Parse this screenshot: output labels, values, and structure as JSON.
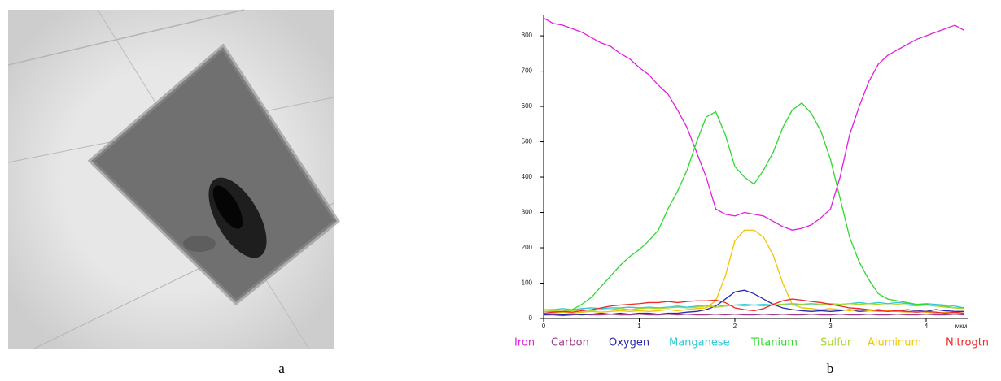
{
  "captions": [
    "a",
    "b"
  ],
  "chart_data": {
    "type": "line",
    "x_unit": "мкм",
    "x": [
      0,
      0.1,
      0.2,
      0.3,
      0.4,
      0.5,
      0.6,
      0.7,
      0.8,
      0.9,
      1.0,
      1.1,
      1.2,
      1.3,
      1.4,
      1.5,
      1.6,
      1.7,
      1.8,
      1.9,
      2.0,
      2.1,
      2.2,
      2.3,
      2.4,
      2.5,
      2.6,
      2.7,
      2.8,
      2.9,
      3.0,
      3.1,
      3.2,
      3.3,
      3.4,
      3.5,
      3.6,
      3.7,
      3.8,
      3.9,
      4.0,
      4.1,
      4.2,
      4.3,
      4.4
    ],
    "xlim": [
      0,
      4.4
    ],
    "xticks": [
      0,
      1,
      2,
      3,
      4
    ],
    "ylim": [
      0,
      860
    ],
    "yticks": [
      0,
      100,
      200,
      300,
      400,
      500,
      600,
      700,
      800
    ],
    "series": [
      {
        "name": "Iron",
        "color": "#e21ee2",
        "values": [
          850,
          835,
          830,
          820,
          810,
          795,
          780,
          770,
          750,
          735,
          710,
          690,
          660,
          635,
          590,
          540,
          470,
          400,
          310,
          295,
          290,
          300,
          295,
          290,
          275,
          260,
          250,
          255,
          265,
          285,
          310,
          400,
          520,
          600,
          670,
          720,
          745,
          760,
          775,
          790,
          800,
          810,
          820,
          830,
          815
        ]
      },
      {
        "name": "Carbon",
        "color": "#a0408a",
        "values": [
          10,
          10,
          8,
          10,
          12,
          10,
          10,
          12,
          10,
          10,
          12,
          10,
          10,
          12,
          10,
          12,
          10,
          10,
          12,
          10,
          12,
          10,
          10,
          12,
          10,
          12,
          10,
          10,
          12,
          10,
          10,
          12,
          10,
          10,
          12,
          10,
          10,
          12,
          10,
          10,
          12,
          10,
          10,
          12,
          10
        ]
      },
      {
        "name": "Oxygen",
        "color": "#2a2ab0",
        "values": [
          10,
          12,
          10,
          12,
          10,
          12,
          15,
          12,
          15,
          12,
          15,
          15,
          12,
          15,
          15,
          18,
          20,
          25,
          35,
          55,
          75,
          80,
          70,
          55,
          40,
          30,
          25,
          22,
          20,
          22,
          20,
          22,
          25,
          20,
          22,
          25,
          22,
          20,
          25,
          22,
          20,
          25,
          22,
          20,
          20
        ]
      },
      {
        "name": "Manganese",
        "color": "#30c8d8",
        "values": [
          25,
          25,
          28,
          25,
          28,
          30,
          28,
          30,
          30,
          32,
          30,
          32,
          30,
          32,
          35,
          32,
          35,
          35,
          38,
          35,
          38,
          40,
          38,
          40,
          38,
          40,
          42,
          40,
          42,
          40,
          42,
          40,
          42,
          45,
          42,
          45,
          42,
          45,
          42,
          40,
          42,
          40,
          38,
          35,
          30
        ]
      },
      {
        "name": "Titanium",
        "color": "#2fd82f",
        "values": [
          20,
          20,
          20,
          25,
          40,
          60,
          90,
          120,
          150,
          175,
          195,
          220,
          250,
          310,
          360,
          420,
          500,
          570,
          585,
          520,
          430,
          400,
          380,
          420,
          470,
          540,
          590,
          610,
          580,
          530,
          450,
          340,
          230,
          160,
          110,
          70,
          55,
          50,
          45,
          40,
          40,
          35,
          35,
          30,
          30
        ]
      },
      {
        "name": "Sulfur",
        "color": "#a8d830",
        "values": [
          20,
          22,
          20,
          22,
          25,
          22,
          25,
          25,
          28,
          25,
          28,
          30,
          28,
          30,
          32,
          30,
          32,
          35,
          32,
          35,
          38,
          35,
          38,
          35,
          38,
          40,
          38,
          40,
          38,
          40,
          42,
          40,
          42,
          40,
          42,
          40,
          38,
          40,
          38,
          35,
          38,
          35,
          32,
          30,
          28
        ]
      },
      {
        "name": "Aluminum",
        "color": "#f2c400",
        "values": [
          15,
          15,
          18,
          15,
          18,
          20,
          18,
          20,
          22,
          20,
          22,
          20,
          22,
          25,
          22,
          25,
          28,
          30,
          50,
          120,
          220,
          250,
          250,
          230,
          180,
          100,
          40,
          30,
          28,
          25,
          28,
          25,
          22,
          25,
          22,
          20,
          22,
          20,
          18,
          20,
          18,
          15,
          18,
          15,
          15
        ]
      },
      {
        "name": "Nitrogtn",
        "color": "#f02828",
        "values": [
          15,
          18,
          20,
          18,
          22,
          25,
          30,
          35,
          38,
          40,
          42,
          45,
          45,
          48,
          45,
          48,
          50,
          50,
          52,
          45,
          30,
          25,
          22,
          28,
          40,
          50,
          55,
          52,
          48,
          45,
          40,
          35,
          30,
          28,
          25,
          22,
          20,
          22,
          20,
          18,
          20,
          18,
          15,
          18,
          15
        ]
      }
    ]
  }
}
